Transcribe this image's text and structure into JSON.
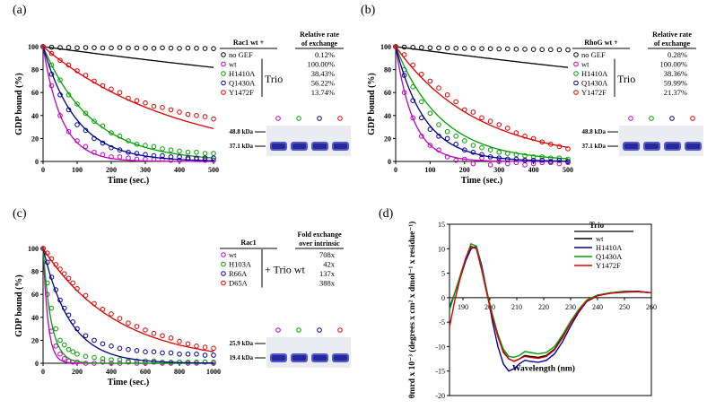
{
  "chart_data": [
    {
      "panel": "(a)",
      "type": "scatter",
      "xlabel": "Time (sec.)",
      "ylabel": "GDP bound (%)",
      "xlim": [
        0,
        500
      ],
      "ylim": [
        0,
        100
      ],
      "xticks": [
        0,
        100,
        200,
        300,
        400,
        500
      ],
      "yticks": [
        0,
        20,
        40,
        60,
        80,
        100
      ],
      "x": [
        0,
        25,
        50,
        75,
        100,
        125,
        150,
        175,
        200,
        225,
        250,
        275,
        300,
        325,
        350,
        375,
        400,
        425,
        450,
        475,
        500
      ],
      "series": [
        {
          "name": "no GEF",
          "color": "#000000",
          "rate": 0.0004,
          "values": [
            100,
            99.5,
            99.2,
            99.3,
            99.0,
            99.2,
            99.1,
            98.9,
            98.9,
            99.2,
            98.8,
            98.9,
            98.8,
            98.6,
            99.0,
            98.7,
            98.5,
            98.8,
            98.6,
            98.4,
            98.3
          ]
        },
        {
          "name": "wt",
          "color": "#c000c0",
          "rate": 0.0181,
          "values": [
            100,
            66,
            40,
            26,
            18,
            13,
            8,
            6,
            4,
            4,
            3,
            2,
            2,
            2,
            2,
            1,
            1,
            2,
            2,
            1,
            1
          ]
        },
        {
          "name": "H1410A",
          "color": "#00a000",
          "rate": 0.007,
          "values": [
            100,
            84,
            71,
            58,
            50,
            42,
            35,
            31,
            25,
            22,
            18,
            15,
            14,
            13,
            11,
            10,
            9,
            8,
            8,
            7,
            7
          ]
        },
        {
          "name": "Q1430A",
          "color": "#000090",
          "rate": 0.0102,
          "values": [
            100,
            76,
            58,
            45,
            32,
            27,
            20,
            16,
            12,
            10,
            8,
            7,
            6,
            5,
            5,
            4,
            4,
            3,
            3,
            3,
            3
          ]
        },
        {
          "name": "Y1472F",
          "color": "#e00000",
          "rate": 0.0025,
          "values": [
            100,
            94,
            88,
            84,
            79,
            75,
            70,
            66,
            63,
            60,
            55,
            53,
            51,
            48,
            47,
            45,
            43,
            41,
            40,
            39,
            37
          ]
        }
      ],
      "legend": {
        "header_left": "Rac1 wt +",
        "header_right": "Relative rate of exchange",
        "group_label": "Trio",
        "group_rows": [
          1,
          4
        ],
        "entries": [
          {
            "label": "no GEF",
            "value": "0.12%"
          },
          {
            "label": "wt",
            "value": "100.00%"
          },
          {
            "label": "H1410A",
            "value": "38.43%"
          },
          {
            "label": "Q1430A",
            "value": "56.22%"
          },
          {
            "label": "Y1472F",
            "value": "13.74%"
          }
        ]
      },
      "gel": {
        "markers": [
          "48.8 kDa",
          "37.1 kDa"
        ],
        "lanes": [
          "#c000c0",
          "#00a000",
          "#000090",
          "#e00000"
        ]
      }
    },
    {
      "panel": "(b)",
      "type": "scatter",
      "xlabel": "Time (sec.)",
      "ylabel": "GDP bound (%)",
      "xlim": [
        0,
        500
      ],
      "ylim": [
        0,
        100
      ],
      "xticks": [
        0,
        100,
        200,
        300,
        400,
        500
      ],
      "yticks": [
        0,
        20,
        40,
        60,
        80,
        100
      ],
      "x": [
        0,
        25,
        50,
        75,
        100,
        125,
        150,
        175,
        200,
        225,
        250,
        275,
        300,
        325,
        350,
        375,
        400,
        425,
        450,
        475,
        500
      ],
      "series": [
        {
          "name": "no GEF",
          "color": "#000000",
          "rate": 0.0004,
          "values": [
            100,
            99.6,
            99.4,
            99.2,
            99.0,
            98.9,
            98.8,
            98.6,
            98.5,
            98.5,
            98.3,
            98.2,
            98.0,
            98.0,
            97.8,
            97.7,
            97.6,
            97.5,
            97.4,
            97.3,
            97.2
          ]
        },
        {
          "name": "wt",
          "color": "#c000c0",
          "rate": 0.0195,
          "values": [
            100,
            60,
            38,
            22,
            14,
            10,
            4,
            1,
            2,
            -2,
            3,
            -3,
            0,
            -2,
            -1,
            -3,
            -2,
            -1,
            -1,
            -2,
            -1
          ]
        },
        {
          "name": "H1410A",
          "color": "#00a000",
          "rate": 0.0075,
          "values": [
            100,
            80,
            65,
            52,
            42,
            32,
            26,
            22,
            18,
            14,
            12,
            10,
            8,
            7,
            6,
            5,
            4,
            4,
            3,
            3,
            2
          ]
        },
        {
          "name": "Q1430A",
          "color": "#000090",
          "rate": 0.0117,
          "values": [
            100,
            75,
            53,
            38,
            28,
            22,
            20,
            15,
            10,
            8,
            6,
            4,
            3,
            2,
            2,
            1,
            1,
            1,
            0,
            1,
            0
          ]
        },
        {
          "name": "Y1472F",
          "color": "#e00000",
          "rate": 0.0042,
          "values": [
            100,
            93,
            84,
            76,
            70,
            64,
            58,
            52,
            45,
            43,
            38,
            35,
            32,
            29,
            25,
            22,
            20,
            17,
            15,
            13,
            11
          ]
        }
      ],
      "legend": {
        "header_left": "RhoG wt +",
        "header_right": "Relative rate of exchange",
        "group_label": "Trio",
        "group_rows": [
          1,
          4
        ],
        "entries": [
          {
            "label": "no GEF",
            "value": "0.28%"
          },
          {
            "label": "wt",
            "value": "100.00%"
          },
          {
            "label": "H1410A",
            "value": "38.36%"
          },
          {
            "label": "Q1430A",
            "value": "59.99%"
          },
          {
            "label": "Y1472F",
            "value": "21.37%"
          }
        ]
      },
      "gel": {
        "markers": [
          "48.8 kDa",
          "37.1 kDa"
        ],
        "lanes": [
          "#c000c0",
          "#00a000",
          "#000090",
          "#e00000"
        ]
      }
    },
    {
      "panel": "(c)",
      "type": "scatter",
      "xlabel": "Time (sec.)",
      "ylabel": "GDP bound (%)",
      "xlim": [
        0,
        1000
      ],
      "ylim": [
        0,
        100
      ],
      "xticks": [
        0,
        200,
        400,
        600,
        800,
        1000
      ],
      "yticks": [
        0,
        20,
        40,
        60,
        80,
        100
      ],
      "x": [
        0,
        25,
        50,
        75,
        100,
        125,
        150,
        175,
        200,
        250,
        300,
        350,
        400,
        450,
        500,
        550,
        600,
        650,
        700,
        750,
        800,
        850,
        900,
        950,
        1000
      ],
      "series": [
        {
          "name": "wt",
          "color": "#c000c0",
          "rate": 0.035,
          "values": [
            100,
            60,
            28,
            15,
            8,
            4,
            2,
            1,
            1,
            0,
            0,
            1,
            0,
            0,
            1,
            0,
            0,
            1,
            0,
            0,
            1,
            0,
            0,
            1,
            0
          ]
        },
        {
          "name": "H103A",
          "color": "#00a000",
          "rate": 0.021,
          "values": [
            100,
            70,
            48,
            30,
            20,
            16,
            12,
            10,
            8,
            6,
            5,
            4,
            3,
            3,
            2,
            2,
            2,
            2,
            1,
            1,
            1,
            1,
            1,
            1,
            1
          ]
        },
        {
          "name": "R66A",
          "color": "#000090",
          "rate": 0.0063,
          "values": [
            100,
            88,
            75,
            64,
            55,
            48,
            42,
            36,
            30,
            24,
            20,
            17,
            15,
            13,
            12,
            11,
            10,
            10,
            9,
            9,
            8,
            8,
            8,
            7,
            7
          ]
        },
        {
          "name": "D65A",
          "color": "#e00000",
          "rate": 0.0023,
          "values": [
            100,
            96,
            91,
            86,
            82,
            78,
            74,
            70,
            65,
            59,
            52,
            47,
            43,
            39,
            35,
            32,
            29,
            26,
            24,
            22,
            19,
            17,
            15,
            14,
            13
          ]
        }
      ],
      "legend": {
        "header_left": "Rac1",
        "header_right": "Fold exchange over intrinsic",
        "group_label": "+ Trio wt",
        "group_rows": [
          0,
          3
        ],
        "entries": [
          {
            "label": "wt",
            "value": "708x"
          },
          {
            "label": "H103A",
            "value": "42x"
          },
          {
            "label": "R66A",
            "value": "137x"
          },
          {
            "label": "D65A",
            "value": "388x"
          }
        ]
      },
      "gel": {
        "markers": [
          "25.9 kDa",
          "19.4 kDa"
        ],
        "lanes": [
          "#c000c0",
          "#00a000",
          "#000090",
          "#e00000"
        ]
      }
    },
    {
      "panel": "(d)",
      "type": "line",
      "xlabel": "Wavelength (nm)",
      "ylabel": "θmrd x 10⁻³ (degrees x cm² x dmol⁻¹ x residue⁻¹)",
      "xlim": [
        185,
        260
      ],
      "ylim": [
        -20,
        15
      ],
      "xticks": [
        190,
        200,
        210,
        220,
        230,
        240,
        250,
        260
      ],
      "yticks": [
        -20,
        -15,
        -10,
        -5,
        0,
        5,
        10,
        15
      ],
      "x": [
        185,
        187,
        189,
        191,
        193,
        195,
        197,
        199,
        201,
        203,
        205,
        207,
        209,
        211,
        213,
        215,
        218,
        221,
        224,
        227,
        230,
        233,
        236,
        240,
        245,
        250,
        255,
        260
      ],
      "legend": {
        "title": "Trio"
      },
      "series": [
        {
          "name": "wt",
          "color": "#000000",
          "values": [
            -2.5,
            1,
            4.5,
            8,
            10.5,
            10,
            6,
            1,
            -4,
            -8,
            -11,
            -12.5,
            -13,
            -12.5,
            -11.8,
            -12,
            -12.2,
            -11.8,
            -10.5,
            -8,
            -5,
            -2.5,
            -0.5,
            0.5,
            1,
            1.2,
            1.3,
            1
          ]
        },
        {
          "name": "H1410A",
          "color": "#0000a0",
          "values": [
            -2,
            1,
            4,
            7.5,
            10,
            10.5,
            6.5,
            1,
            -5,
            -10,
            -13.5,
            -15,
            -14.5,
            -13.5,
            -12.8,
            -13,
            -13.2,
            -12.8,
            -11.5,
            -9,
            -5.8,
            -3,
            -0.8,
            0.4,
            1,
            1.3,
            1.3,
            1
          ]
        },
        {
          "name": "Q1430A",
          "color": "#00a000",
          "values": [
            -2.5,
            1,
            4.5,
            8,
            11,
            10.5,
            6,
            1,
            -3.5,
            -7.5,
            -10.5,
            -12,
            -12.2,
            -11.8,
            -11,
            -11.2,
            -11.5,
            -11.2,
            -10,
            -7.6,
            -4.8,
            -2.4,
            -0.5,
            0.5,
            1,
            1.2,
            1.2,
            1
          ]
        },
        {
          "name": "Y1472F",
          "color": "#e00000",
          "values": [
            -6,
            -0.5,
            4,
            8,
            10.5,
            10,
            5.5,
            0.5,
            -4,
            -8,
            -11.2,
            -12.5,
            -13,
            -12.5,
            -12,
            -12.2,
            -12.4,
            -12,
            -10.7,
            -8.2,
            -5.2,
            -2.7,
            -0.7,
            0.4,
            0.9,
            1.1,
            1.2,
            1
          ]
        }
      ]
    }
  ]
}
